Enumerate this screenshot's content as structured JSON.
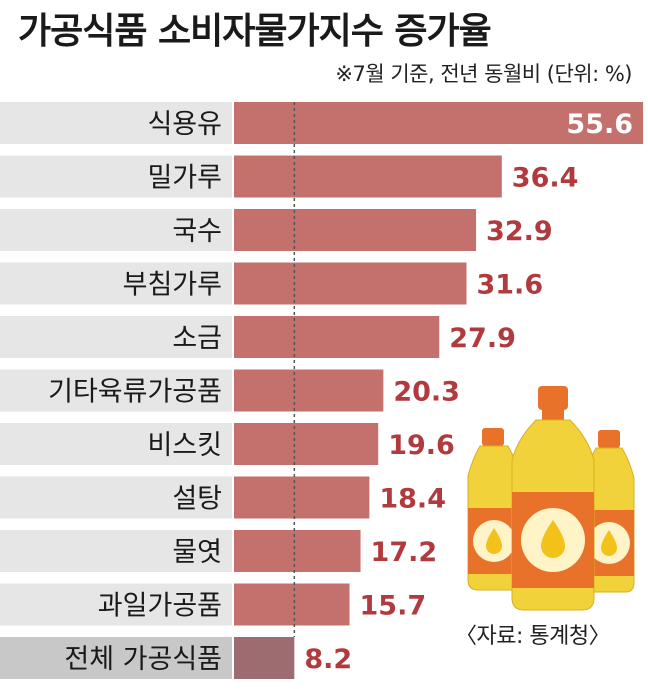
{
  "title": "가공식품 소비자물가지수 증가율",
  "subtitle": "※7월 기준, 전년 동월비 (단위: %)",
  "source": "〈자료: 통계청〉",
  "colors": {
    "bar": "#c4706c",
    "bar_total": "#9c6c70",
    "label_bg": "#e6e6e6",
    "label_bg_total": "#c8c8c8",
    "value_text": "#b03a3e",
    "value_text_inside": "#ffffff",
    "oil": "#f2d23a",
    "bottle_label": "#e8722a",
    "cap": "#e8722a"
  },
  "chart_data": {
    "type": "bar",
    "orientation": "horizontal",
    "categories": [
      "식용유",
      "밀가루",
      "국수",
      "부침가루",
      "소금",
      "기타육류가공품",
      "비스킷",
      "설탕",
      "물엿",
      "과일가공품",
      "전체 가공식품"
    ],
    "values": [
      55.6,
      36.4,
      32.9,
      31.6,
      27.9,
      20.3,
      19.6,
      18.4,
      17.2,
      15.7,
      8.2
    ],
    "value_labels": [
      "55.6",
      "36.4",
      "32.9",
      "31.6",
      "27.9",
      "20.3",
      "19.6",
      "18.4",
      "17.2",
      "15.7",
      "8.2"
    ],
    "highlight_category": "전체 가공식품",
    "reference_line": 8.2,
    "xlim": [
      0,
      56
    ],
    "grid": false,
    "legend": "none",
    "title": "가공식품 소비자물가지수 증가율",
    "xlabel": "",
    "ylabel": ""
  }
}
